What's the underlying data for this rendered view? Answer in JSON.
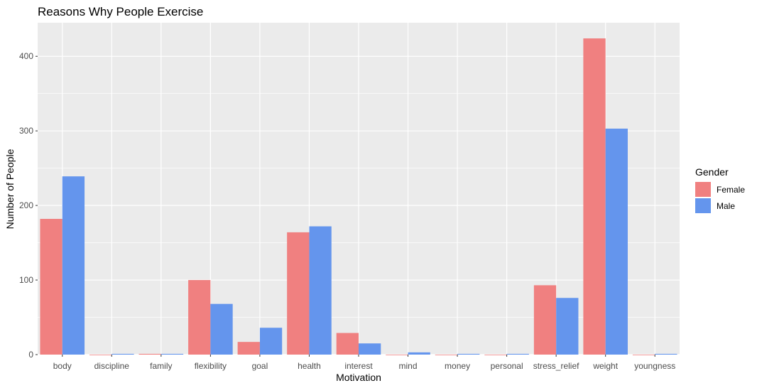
{
  "chart_data": {
    "type": "bar",
    "title": "Reasons Why People Exercise",
    "xlabel": "Motivation",
    "ylabel": "Number of People",
    "categories": [
      "body",
      "discipline",
      "family",
      "flexibility",
      "goal",
      "health",
      "interest",
      "mind",
      "money",
      "personal",
      "stress_relief",
      "weight",
      "youngness"
    ],
    "series": [
      {
        "name": "Female",
        "color": "#F08080",
        "values": [
          182,
          0,
          1,
          100,
          17,
          164,
          29,
          0,
          0,
          0,
          93,
          424,
          0
        ]
      },
      {
        "name": "Male",
        "color": "#6495ED",
        "values": [
          239,
          1,
          1,
          68,
          36,
          172,
          15,
          3,
          1,
          1,
          76,
          303,
          1
        ]
      }
    ],
    "ylim": [
      0,
      445
    ],
    "yticks": [
      0,
      100,
      200,
      300,
      400
    ],
    "grid": true,
    "legend_title": "Gender",
    "legend_position": "right",
    "panel_background": "#EBEBEB"
  }
}
